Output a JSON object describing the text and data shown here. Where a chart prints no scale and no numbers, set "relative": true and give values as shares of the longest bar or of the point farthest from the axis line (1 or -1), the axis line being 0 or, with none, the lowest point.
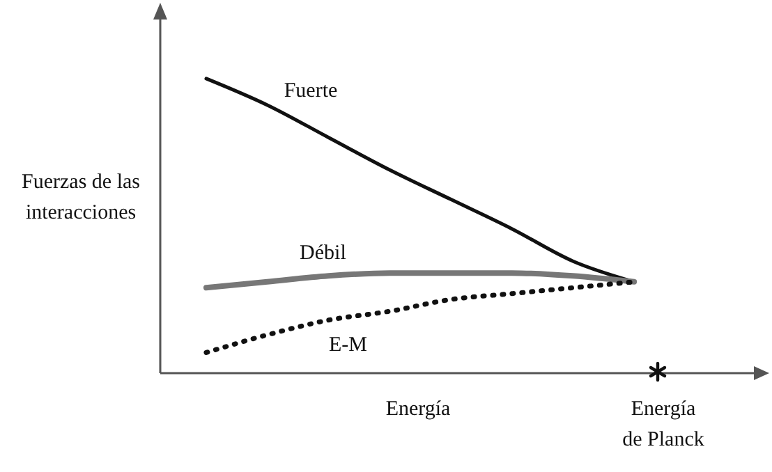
{
  "chart_data": {
    "type": "line",
    "relative": true,
    "xlabel": "Energía",
    "ylabel": "Fuerzas de las interacciones",
    "marker": "none",
    "categories": [
      null,
      null,
      null,
      null,
      null,
      null,
      null,
      null
    ],
    "annotations": [
      "Energía de Planck"
    ],
    "series": [
      {
        "name": "Fuerte",
        "color": "#111111",
        "line_style": "solid",
        "values": [
          1.0,
          0.91,
          0.8,
          0.69,
          0.59,
          0.49,
          0.38,
          0.31
        ]
      },
      {
        "name": "Débil",
        "color": "#777777",
        "line_style": "solid",
        "values": [
          0.29,
          0.31,
          0.33,
          0.34,
          0.34,
          0.34,
          0.33,
          0.31
        ]
      },
      {
        "name": "E-M",
        "color": "#111111",
        "line_style": "dotted",
        "values": [
          0.07,
          0.13,
          0.18,
          0.21,
          0.25,
          0.27,
          0.29,
          0.31
        ]
      }
    ]
  }
}
